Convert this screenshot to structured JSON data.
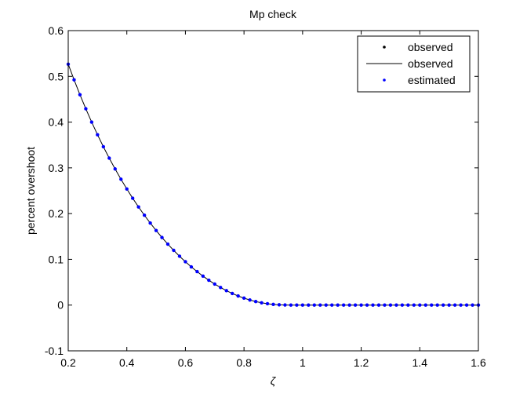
{
  "chart_data": {
    "type": "line",
    "title": "Mp check",
    "xlabel": "ζ",
    "ylabel": "percent overshoot",
    "xlim": [
      0.2,
      1.6
    ],
    "ylim": [
      -0.1,
      0.6
    ],
    "xticks": [
      "0.2",
      "0.4",
      "0.6",
      "0.8",
      "1",
      "1.2",
      "1.4",
      "1.6"
    ],
    "yticks": [
      "-0.1",
      "0",
      "0.1",
      "0.2",
      "0.3",
      "0.4",
      "0.5",
      "0.6"
    ],
    "grid": false,
    "legend_position": "top-right",
    "x": [
      0.2,
      0.22,
      0.24,
      0.26,
      0.28,
      0.3,
      0.32,
      0.34,
      0.36,
      0.38,
      0.4,
      0.42,
      0.44,
      0.46,
      0.48,
      0.5,
      0.52,
      0.54,
      0.56,
      0.58,
      0.6,
      0.62,
      0.64,
      0.66,
      0.68,
      0.7,
      0.72,
      0.74,
      0.76,
      0.78,
      0.8,
      0.82,
      0.84,
      0.86,
      0.88,
      0.9,
      0.92,
      0.94,
      0.96,
      0.98,
      1.0,
      1.02,
      1.04,
      1.06,
      1.08,
      1.1,
      1.12,
      1.14,
      1.16,
      1.18,
      1.2,
      1.22,
      1.24,
      1.26,
      1.28,
      1.3,
      1.32,
      1.34,
      1.36,
      1.38,
      1.4,
      1.42,
      1.44,
      1.46,
      1.48,
      1.5,
      1.52,
      1.54,
      1.56,
      1.58,
      1.6
    ],
    "y": [
      0.5266,
      0.4924,
      0.4599,
      0.4292,
      0.4,
      0.3723,
      0.3461,
      0.3212,
      0.2976,
      0.2751,
      0.2538,
      0.2336,
      0.2145,
      0.1964,
      0.1793,
      0.163,
      0.1477,
      0.1332,
      0.1196,
      0.1068,
      0.0948,
      0.0835,
      0.0731,
      0.0633,
      0.0543,
      0.046,
      0.0384,
      0.0316,
      0.0254,
      0.0199,
      0.0152,
      0.0111,
      0.0077,
      0.005,
      0.003,
      0.0015,
      0.0006,
      0.0002,
      0,
      0,
      0,
      0,
      0,
      0,
      0,
      0,
      0,
      0,
      0,
      0,
      0,
      0,
      0,
      0,
      0,
      0,
      0,
      0,
      0,
      0,
      0,
      0,
      0,
      0,
      0,
      0,
      0,
      0,
      0,
      0,
      0
    ],
    "series": [
      {
        "name": "observed",
        "style": "dot",
        "color": "#000000"
      },
      {
        "name": "observed",
        "style": "line",
        "color": "#000000"
      },
      {
        "name": "estimated",
        "style": "dot",
        "color": "#0000ff"
      }
    ]
  }
}
